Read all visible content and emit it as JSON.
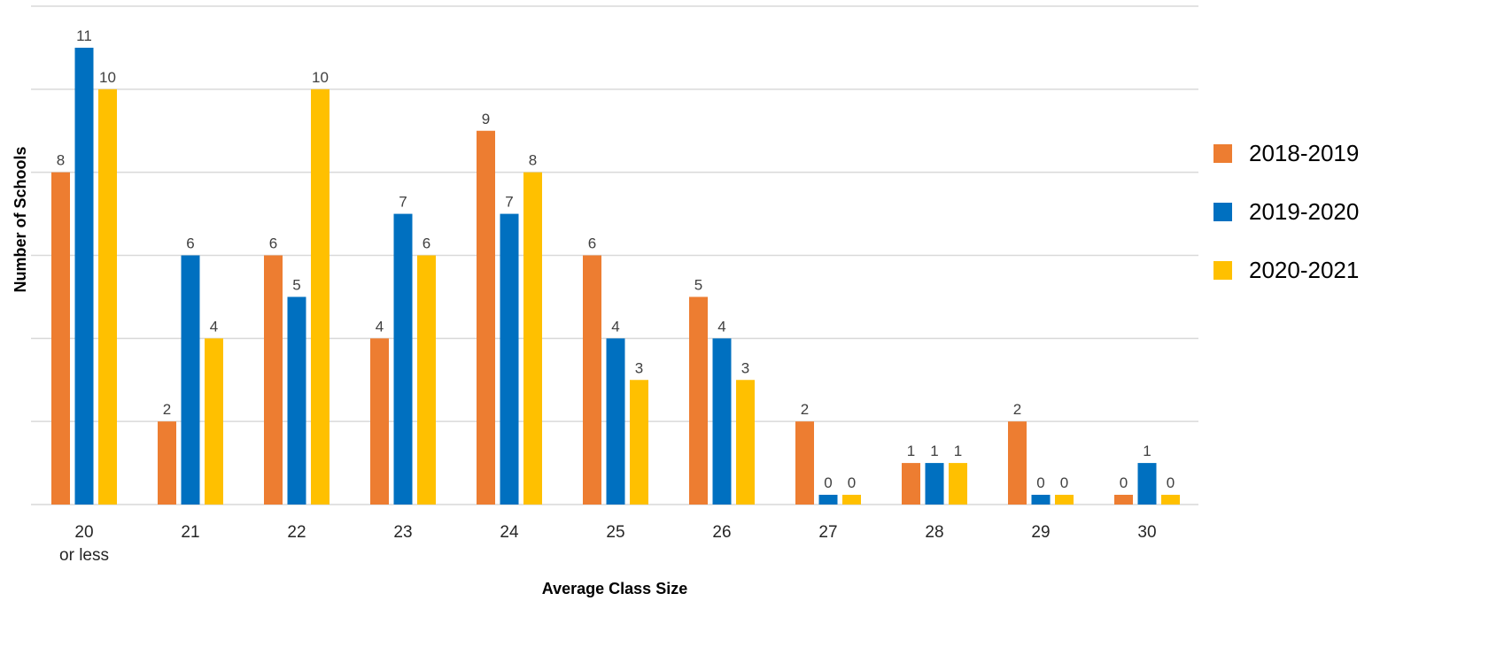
{
  "chart_data": {
    "type": "bar",
    "title": "",
    "xlabel": "Average Class Size",
    "ylabel": "Number of Schools",
    "categories": [
      [
        "20",
        "or less"
      ],
      [
        "21"
      ],
      [
        "22"
      ],
      [
        "23"
      ],
      [
        "24"
      ],
      [
        "25"
      ],
      [
        "26"
      ],
      [
        "27"
      ],
      [
        "28"
      ],
      [
        "29"
      ],
      [
        "30"
      ]
    ],
    "series": [
      {
        "name": "2018-2019",
        "color": "#ED7D31",
        "values": [
          8,
          2,
          6,
          4,
          9,
          6,
          5,
          2,
          1,
          2,
          0
        ]
      },
      {
        "name": "2019-2020",
        "color": "#0070C0",
        "values": [
          11,
          6,
          5,
          7,
          7,
          4,
          4,
          0,
          1,
          0,
          1
        ]
      },
      {
        "name": "2020-2021",
        "color": "#FFC000",
        "values": [
          10,
          4,
          10,
          6,
          8,
          3,
          3,
          0,
          1,
          0,
          0
        ]
      }
    ],
    "ylim": [
      0,
      12
    ],
    "ytick_step": 2,
    "y_tick_labels_shown": false,
    "grid": true,
    "legend_position": "right",
    "data_labels": true
  }
}
